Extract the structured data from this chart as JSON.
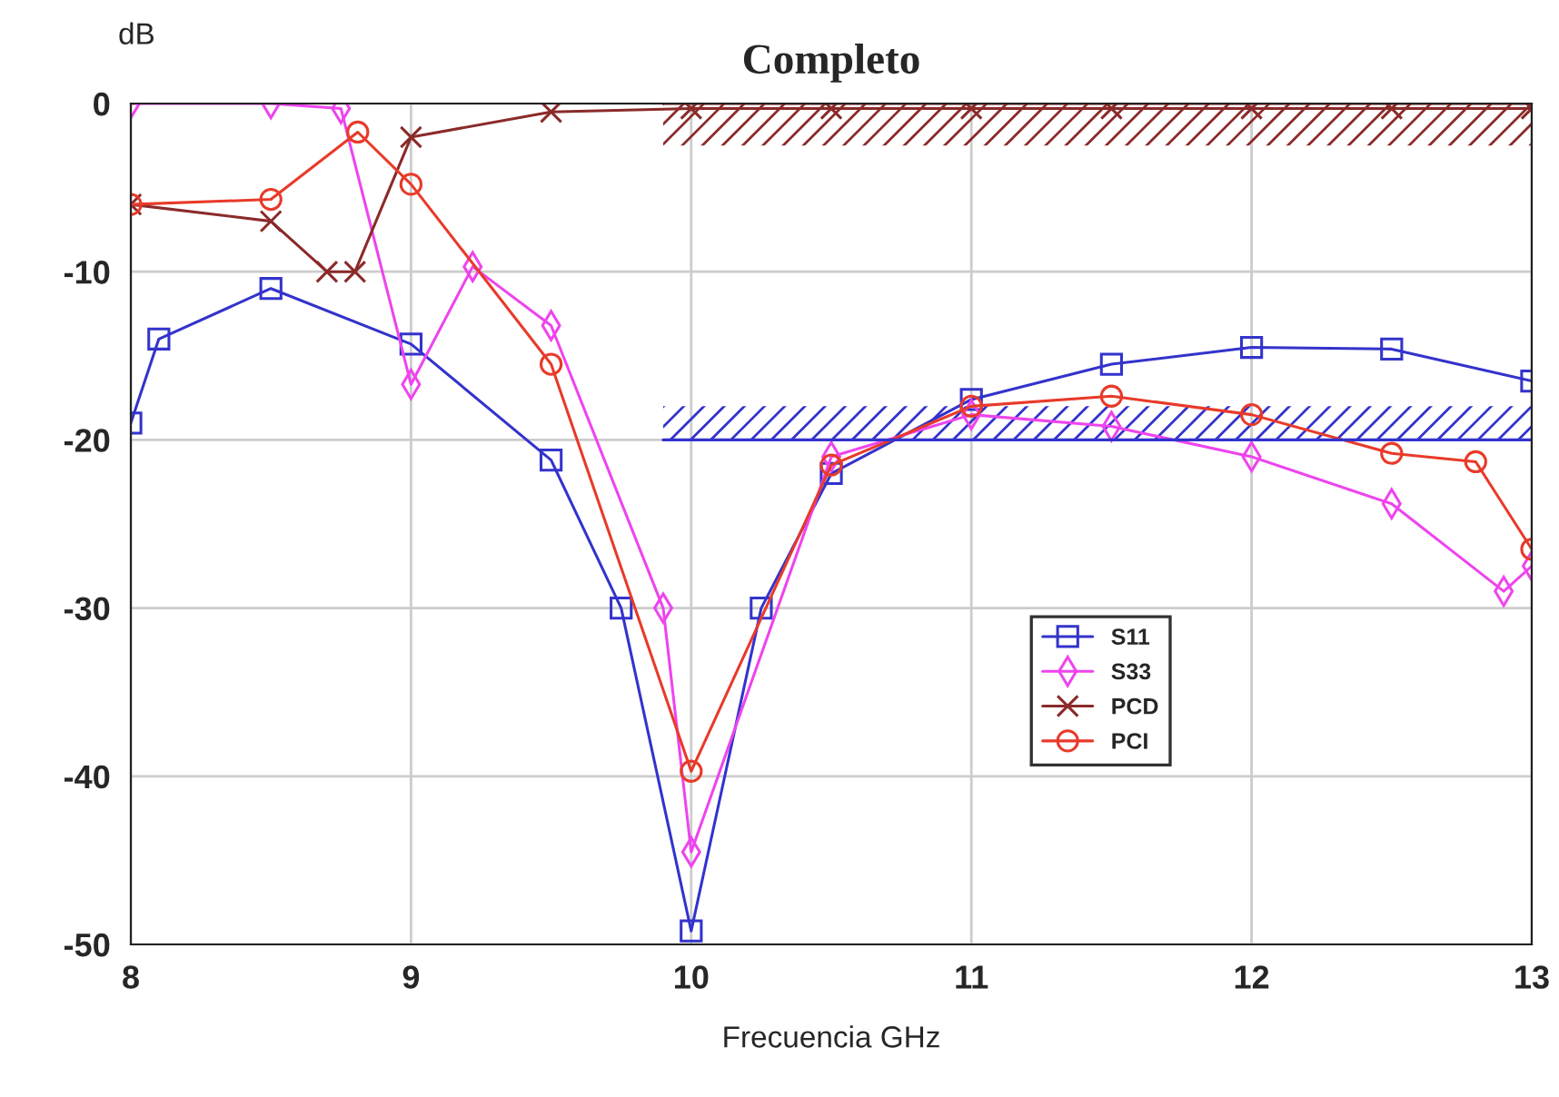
{
  "chart_data": {
    "type": "line",
    "title": "Completo",
    "xlabel": "Frecuencia GHz",
    "ylabel": "dB",
    "xlim": [
      8,
      13
    ],
    "ylim": [
      -50,
      0
    ],
    "xticks": [
      8,
      9,
      10,
      11,
      12,
      13
    ],
    "yticks": [
      -50,
      -40,
      -30,
      -20,
      -10,
      0
    ],
    "grid": true,
    "legend": "bottom right",
    "line_style": "solid",
    "series": [
      {
        "name": "S11",
        "color": "#3333cc",
        "marker": "square",
        "x": [
          8,
          8.1,
          8.5,
          9,
          9.5,
          9.75,
          10,
          10.25,
          10.5,
          11,
          11.5,
          12,
          12.5,
          13
        ],
        "values": [
          -19,
          -14,
          -11,
          -14.3,
          -21.2,
          -30,
          -49.2,
          -30,
          -22,
          -17.6,
          -15.5,
          -14.5,
          -14.6,
          -16.5
        ]
      },
      {
        "name": "S33",
        "color": "#ee44ee",
        "marker": "diamond",
        "x": [
          8,
          8.5,
          8.75,
          9,
          9.22,
          9.5,
          9.9,
          10,
          10.5,
          11,
          11.5,
          12,
          12.5,
          12.9,
          13
        ],
        "values": [
          0,
          0,
          -0.3,
          -16.7,
          -9.7,
          -13.2,
          -30,
          -44.5,
          -21,
          -18.5,
          -19.2,
          -21,
          -23.8,
          -29,
          -27.5
        ]
      },
      {
        "name": "PCD",
        "color": "#8b2a2a",
        "marker": "cross",
        "x": [
          8,
          8.5,
          8.7,
          8.8,
          9,
          9.5,
          10,
          10.5,
          11,
          11.5,
          12,
          12.5,
          13
        ],
        "values": [
          -6,
          -7,
          -10,
          -10,
          -2,
          -0.5,
          -0.3,
          -0.3,
          -0.3,
          -0.3,
          -0.3,
          -0.3,
          -0.3
        ]
      },
      {
        "name": "PCI",
        "color": "#e83a2a",
        "marker": "circle",
        "x": [
          8,
          8.5,
          8.81,
          9,
          9.5,
          10,
          10.5,
          11,
          11.5,
          12,
          12.5,
          12.8,
          13
        ],
        "values": [
          -6,
          -5.7,
          -1.7,
          -4.8,
          -15.5,
          -39.7,
          -21.5,
          -18,
          -17.4,
          -18.5,
          -20.8,
          -21.3,
          -26.5
        ]
      },
      {
        "type": "line",
        "marker": "none",
        "color": "#3333cc",
        "x": [
          9.9,
          13
        ],
        "values": [
          -20,
          -20
        ],
        "lower": [
          -20,
          -20
        ],
        "upper": [
          -18,
          -18
        ]
      },
      {
        "type": "line",
        "marker": "none",
        "color": "#8b2a2a",
        "x": [
          9.9,
          13
        ],
        "values": [
          0,
          0
        ],
        "lower": [
          -2.5,
          -2.5
        ],
        "upper": [
          0,
          0
        ]
      }
    ]
  }
}
